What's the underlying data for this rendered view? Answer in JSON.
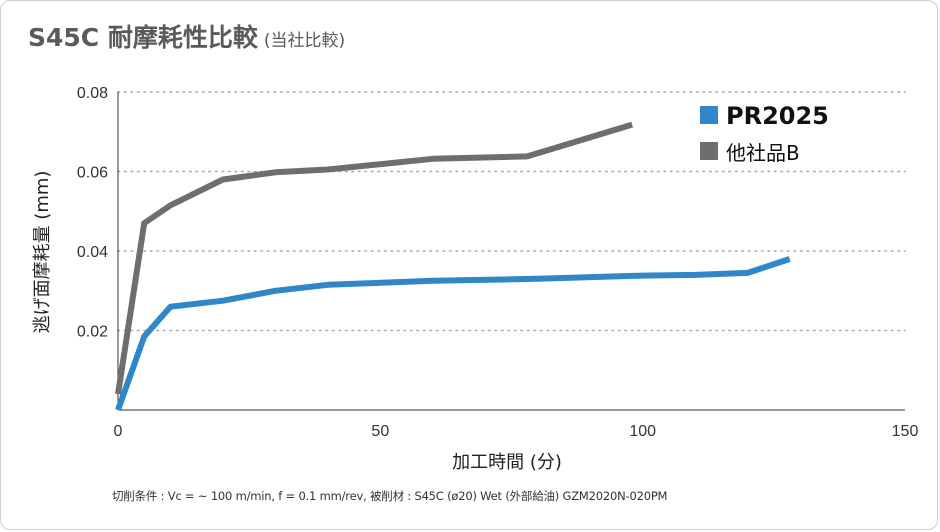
{
  "title": {
    "main": "S45C 耐摩耗性比較",
    "sub": "(当社比較)"
  },
  "footer": "切削条件 : Vc = ~ 100 m/min, f = 0.1 mm/rev, 被削材 : S45C (ø20)  Wet (外部給油)  GZM2020N-020PM",
  "chart_data": {
    "type": "line",
    "xlabel": "加工時間 (分)",
    "ylabel": "逃げ面摩耗量 (mm)",
    "xlim": [
      0,
      150
    ],
    "ylim": [
      0,
      0.08
    ],
    "xticks": [
      "0",
      "50",
      "100",
      "150"
    ],
    "yticks": [
      "0.02",
      "0.04",
      "0.06",
      "0.08"
    ],
    "grid": "horizontal dotted",
    "legend_position": "top-right",
    "series": [
      {
        "name": "PR2025",
        "color": "#2f86c8",
        "x": [
          0,
          5,
          10,
          20,
          30,
          40,
          60,
          80,
          100,
          110,
          120,
          128
        ],
        "y": [
          0,
          0.0185,
          0.026,
          0.0275,
          0.03,
          0.0315,
          0.0325,
          0.033,
          0.0338,
          0.034,
          0.0345,
          0.038
        ]
      },
      {
        "name": "他社品B",
        "color": "#6e6e6e",
        "x": [
          0,
          5,
          10,
          20,
          30,
          40,
          60,
          78,
          98
        ],
        "y": [
          0.004,
          0.047,
          0.0515,
          0.058,
          0.0598,
          0.0605,
          0.0632,
          0.0638,
          0.0718
        ]
      }
    ]
  }
}
